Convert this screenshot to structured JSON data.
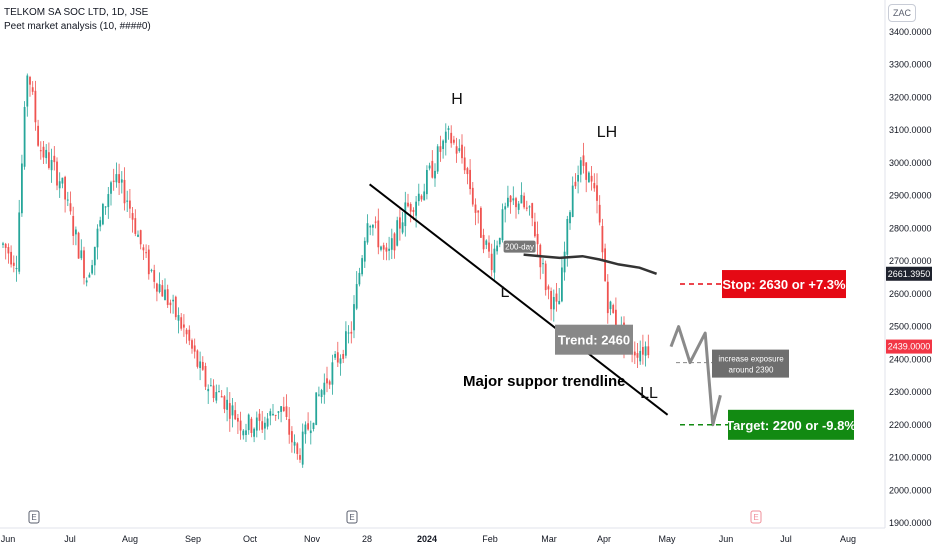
{
  "header": {
    "symbol": "TELKOM SA SOC LTD, 1D, JSE",
    "indicator": "Peet market analysis (10, ####0)",
    "currency": "ZAC"
  },
  "chart_data": {
    "type": "candlestick",
    "x_ticks": [
      "Jun",
      "Jul",
      "Aug",
      "Sep",
      "Oct",
      "Nov",
      "28",
      "2024",
      "Feb",
      "Mar",
      "Apr",
      "May",
      "Jun",
      "Jul",
      "Aug"
    ],
    "y_ticks": [
      "3400.0000",
      "3300.0000",
      "3200.0000",
      "3100.0000",
      "3000.0000",
      "2900.0000",
      "2800.0000",
      "2700.0000",
      "2600.0000",
      "2500.0000",
      "2400.0000",
      "2300.0000",
      "2200.0000",
      "2100.0000",
      "2000.0000",
      "1900.0000"
    ],
    "ylim": [
      1900,
      3440
    ],
    "earnings_markers": [
      "E",
      "E",
      "E"
    ],
    "last_price_labels": [
      "2661.3950",
      "2439.0000"
    ],
    "price_path": [
      [
        "2023-06-01",
        2750
      ],
      [
        "2023-06-08",
        2700
      ],
      [
        "2023-06-14",
        3300
      ],
      [
        "2023-06-20",
        3050
      ],
      [
        "2023-07-01",
        2950
      ],
      [
        "2023-07-08",
        2800
      ],
      [
        "2023-07-15",
        2650
      ],
      [
        "2023-07-28",
        2950
      ],
      [
        "2023-08-05",
        2900
      ],
      [
        "2023-08-15",
        2700
      ],
      [
        "2023-08-25",
        2600
      ],
      [
        "2023-09-05",
        2480
      ],
      [
        "2023-09-15",
        2330
      ],
      [
        "2023-09-25",
        2280
      ],
      [
        "2023-10-05",
        2200
      ],
      [
        "2023-10-15",
        2200
      ],
      [
        "2023-10-25",
        2260
      ],
      [
        "2023-11-03",
        2100
      ],
      [
        "2023-11-15",
        2300
      ],
      [
        "2023-11-22",
        2380
      ],
      [
        "2023-12-01",
        2480
      ],
      [
        "2023-12-10",
        2850
      ],
      [
        "2023-12-20",
        2700
      ],
      [
        "2023-12-29",
        2850
      ],
      [
        "2024-01-08",
        2920
      ],
      [
        "2024-01-18",
        3050
      ],
      [
        "2024-01-22",
        3080
      ],
      [
        "2024-01-30",
        3000
      ],
      [
        "2024-02-06",
        2820
      ],
      [
        "2024-02-13",
        2700
      ],
      [
        "2024-02-20",
        2850
      ],
      [
        "2024-02-27",
        2890
      ],
      [
        "2024-03-06",
        2820
      ],
      [
        "2024-03-13",
        2620
      ],
      [
        "2024-03-19",
        2540
      ],
      [
        "2024-03-27",
        2950
      ],
      [
        "2024-04-02",
        3000
      ],
      [
        "2024-04-09",
        2860
      ],
      [
        "2024-04-14",
        2580
      ],
      [
        "2024-04-21",
        2480
      ],
      [
        "2024-04-28",
        2430
      ],
      [
        "2024-05-06",
        2439
      ]
    ],
    "sma_200": [
      [
        "2024-03-01",
        2720
      ],
      [
        "2024-03-10",
        2715
      ],
      [
        "2024-03-20",
        2710
      ],
      [
        "2024-04-01",
        2715
      ],
      [
        "2024-04-10",
        2705
      ],
      [
        "2024-04-20",
        2690
      ],
      [
        "2024-05-01",
        2680
      ],
      [
        "2024-05-10",
        2661.395
      ]
    ],
    "trendline": [
      [
        "2024-01-01",
        2950
      ],
      [
        "2024-05-20",
        2200
      ]
    ],
    "projection": [
      [
        "2024-05-06",
        2439
      ],
      [
        "2024-05-10",
        2500
      ],
      [
        "2024-05-16",
        2390
      ],
      [
        "2024-05-24",
        2480
      ],
      [
        "2024-05-28",
        2200
      ],
      [
        "2024-06-01",
        2290
      ]
    ],
    "stop_level": 2630,
    "target_level": 2200,
    "exposure_level": 2390
  },
  "annotations": {
    "head": "H",
    "lower_high": "LH",
    "low": "L",
    "lower_low": "LL",
    "sma_label": "200-day",
    "trendline_label": "Major suppor trendline",
    "trend_box": "Trend: 2460",
    "exposure_line1": "increase exposure",
    "exposure_line2": "around 2390",
    "stop_box": "Stop: 2630 or +7.3%",
    "target_box": "Target: 2200 or -9.8%"
  },
  "colors": {
    "up": "#26a69a",
    "down": "#ef5350",
    "stop": "#e50914",
    "target": "#128a12",
    "grey_box": "#888888",
    "exposure_box": "#6e6e6e",
    "sma_line": "#333333",
    "projection_line": "#8a8a8a",
    "axis_text": "#131722"
  }
}
